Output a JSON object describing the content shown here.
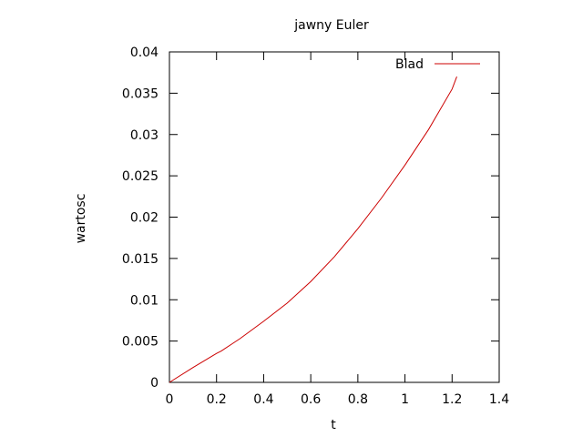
{
  "chart_data": {
    "type": "line",
    "title": "jawny Euler",
    "xlabel": "t",
    "ylabel": "wartosc",
    "xlim": [
      0,
      1.4
    ],
    "ylim": [
      0,
      0.04
    ],
    "xticks": [
      0,
      0.2,
      0.4,
      0.6,
      0.8,
      1.0,
      1.2,
      1.4
    ],
    "xtick_labels": [
      "0",
      "0.2",
      "0.4",
      "0.6",
      "0.8",
      "1",
      "1.2",
      "1.4"
    ],
    "yticks": [
      0,
      0.005,
      0.01,
      0.015,
      0.02,
      0.025,
      0.03,
      0.035,
      0.04
    ],
    "ytick_labels": [
      "0",
      "0.005",
      "0.01",
      "0.015",
      "0.02",
      "0.025",
      "0.03",
      "0.035",
      "0.04"
    ],
    "grid": false,
    "legend_position": "top-right",
    "series": [
      {
        "name": "Blad",
        "color": "#cc0000",
        "x": [
          0,
          0.1,
          0.2,
          0.22,
          0.3,
          0.4,
          0.5,
          0.6,
          0.7,
          0.8,
          0.9,
          1.0,
          1.1,
          1.2,
          1.22
        ],
        "y": [
          0,
          0.0018,
          0.0035,
          0.0038,
          0.0053,
          0.0074,
          0.0096,
          0.0122,
          0.0152,
          0.0186,
          0.0223,
          0.0263,
          0.0306,
          0.0355,
          0.037
        ]
      }
    ]
  }
}
